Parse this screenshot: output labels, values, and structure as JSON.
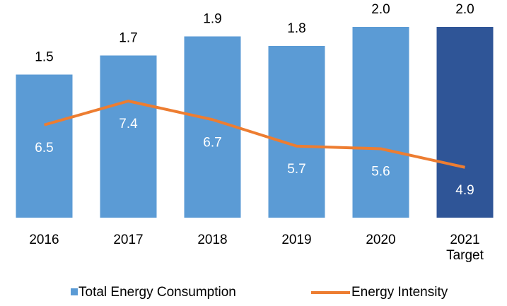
{
  "chart_data": {
    "type": "bar_line",
    "categories": [
      "2016",
      "2017",
      "2018",
      "2019",
      "2020",
      "2021 Target"
    ],
    "series": [
      {
        "name": "Total Energy Consumption",
        "color": "#5b9bd5",
        "colors": [
          "#5b9bd5",
          "#5b9bd5",
          "#5b9bd5",
          "#5b9bd5",
          "#5b9bd5",
          "#2f5597"
        ],
        "values": [
          1.5,
          1.7,
          1.9,
          1.8,
          2.0,
          2.0
        ],
        "value_labels": [
          "1.5",
          "1.7",
          "1.9",
          "1.8",
          "2.0",
          "2.0"
        ]
      },
      {
        "name": "Energy Intensity",
        "color": "#ed7d31",
        "axis": "y2",
        "values": [
          6.5,
          7.4,
          6.7,
          5.7,
          5.6,
          4.9
        ]
      }
    ],
    "ylim": [
      0,
      2.0
    ],
    "y2lim": [
      3,
      10.2
    ],
    "legend": "bottom"
  }
}
